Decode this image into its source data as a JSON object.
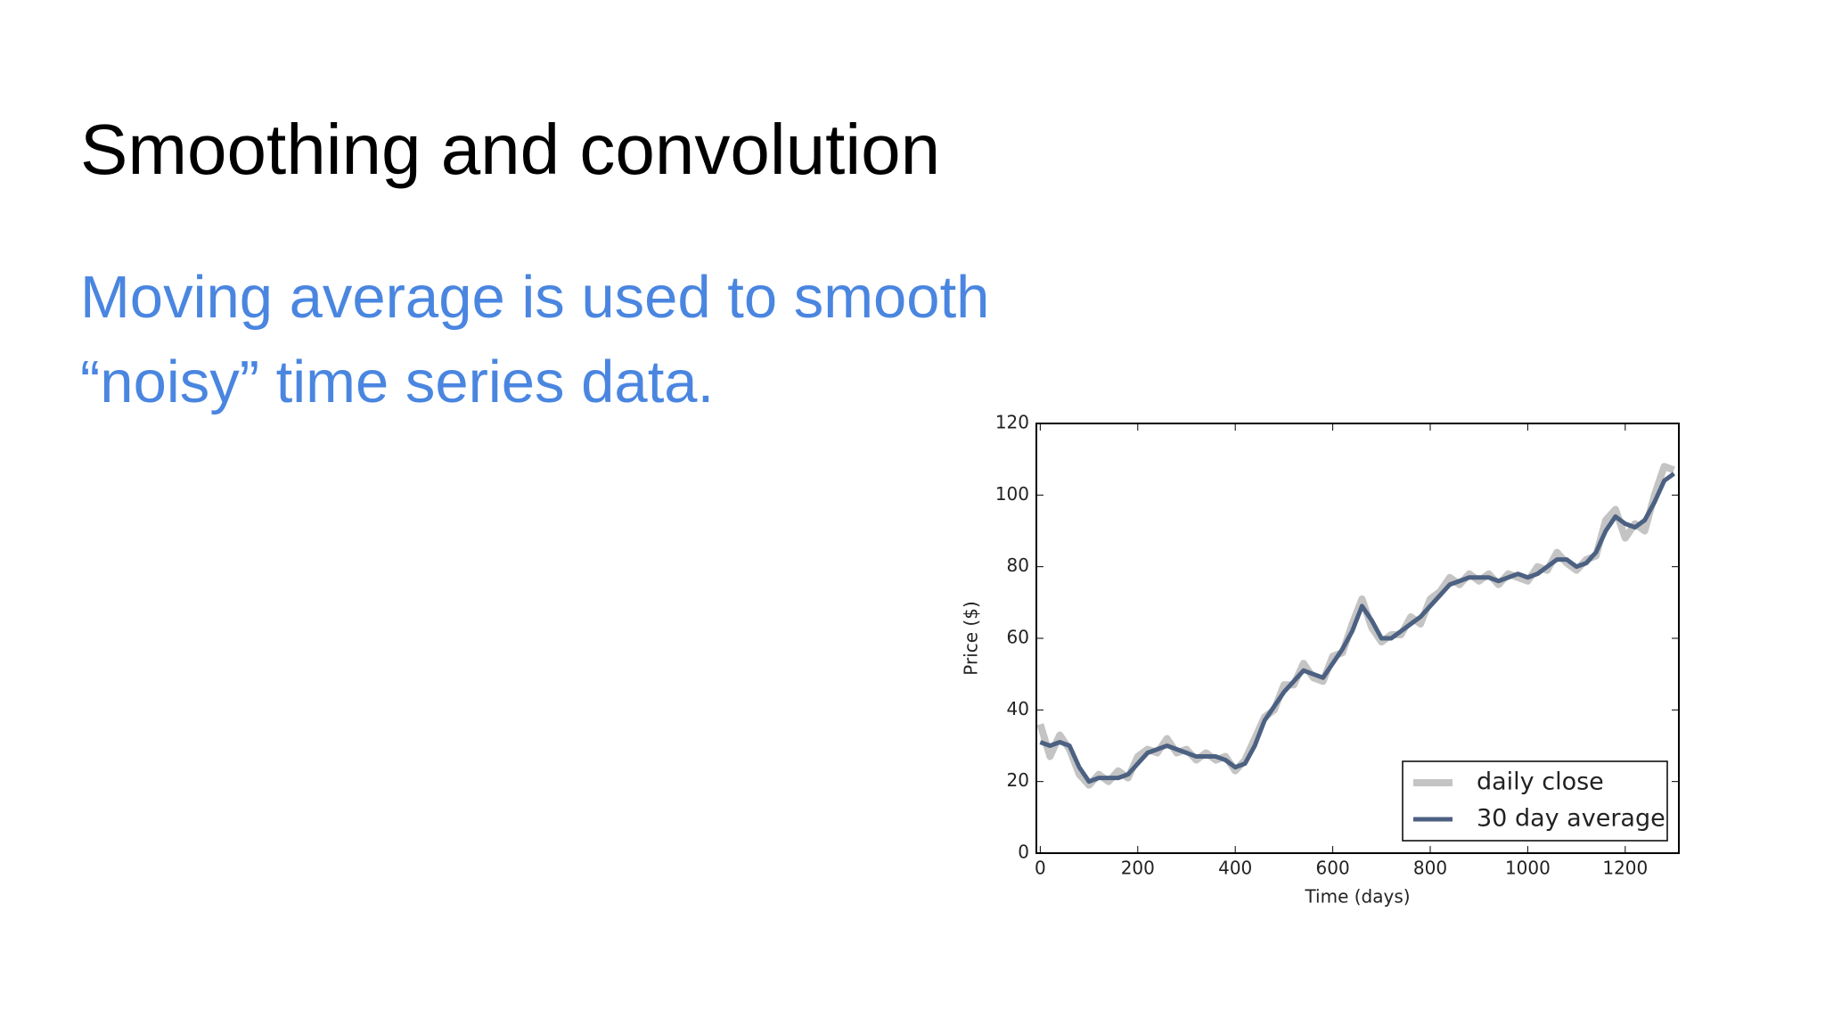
{
  "slide": {
    "title": "Smoothing and convolution",
    "body": "Moving average is used to smooth “noisy” time series data."
  },
  "chart_data": {
    "type": "line",
    "x_label": "Time (days)",
    "y_label": "Price ($)",
    "x": [
      0,
      20,
      40,
      60,
      80,
      100,
      120,
      140,
      160,
      180,
      200,
      220,
      240,
      260,
      280,
      300,
      320,
      340,
      360,
      380,
      400,
      420,
      440,
      460,
      480,
      500,
      520,
      540,
      560,
      580,
      600,
      620,
      640,
      660,
      680,
      700,
      720,
      740,
      760,
      780,
      800,
      820,
      840,
      860,
      880,
      900,
      920,
      940,
      960,
      980,
      1000,
      1020,
      1040,
      1060,
      1080,
      1100,
      1120,
      1140,
      1160,
      1180,
      1200,
      1220,
      1240,
      1260,
      1280,
      1300
    ],
    "series": [
      {
        "name": "daily close",
        "color": "#c4c4c4",
        "values": [
          36,
          27,
          33,
          29,
          22,
          19,
          22,
          20,
          23,
          21,
          27,
          29,
          28,
          32,
          28,
          29,
          26,
          28,
          26,
          27,
          23,
          26,
          32,
          38,
          40,
          47,
          47,
          53,
          49,
          48,
          55,
          56,
          64,
          71,
          63,
          59,
          61,
          61,
          66,
          64,
          71,
          73,
          77,
          75,
          78,
          76,
          78,
          75,
          78,
          77,
          76,
          80,
          79,
          84,
          81,
          79,
          82,
          83,
          93,
          96,
          88,
          92,
          90,
          100,
          108,
          107
        ]
      },
      {
        "name": "30 day average",
        "color": "#4c6182",
        "values": [
          31,
          30,
          31,
          30,
          24,
          20,
          21,
          21,
          21,
          22,
          25,
          28,
          29,
          30,
          29,
          28,
          27,
          27,
          27,
          26,
          24,
          25,
          30,
          37,
          41,
          45,
          48,
          51,
          50,
          49,
          53,
          57,
          62,
          69,
          65,
          60,
          60,
          62,
          64,
          66,
          69,
          72,
          75,
          76,
          77,
          77,
          77,
          76,
          77,
          78,
          77,
          78,
          80,
          82,
          82,
          80,
          81,
          84,
          90,
          94,
          92,
          91,
          93,
          98,
          104,
          106
        ]
      }
    ],
    "xlim": [
      -8,
      1310
    ],
    "xticks": [
      0,
      200,
      400,
      600,
      800,
      1000,
      1200
    ],
    "ylim": [
      0,
      120
    ],
    "yticks": [
      0,
      20,
      40,
      60,
      80,
      100,
      120
    ],
    "legend": "lower right"
  }
}
